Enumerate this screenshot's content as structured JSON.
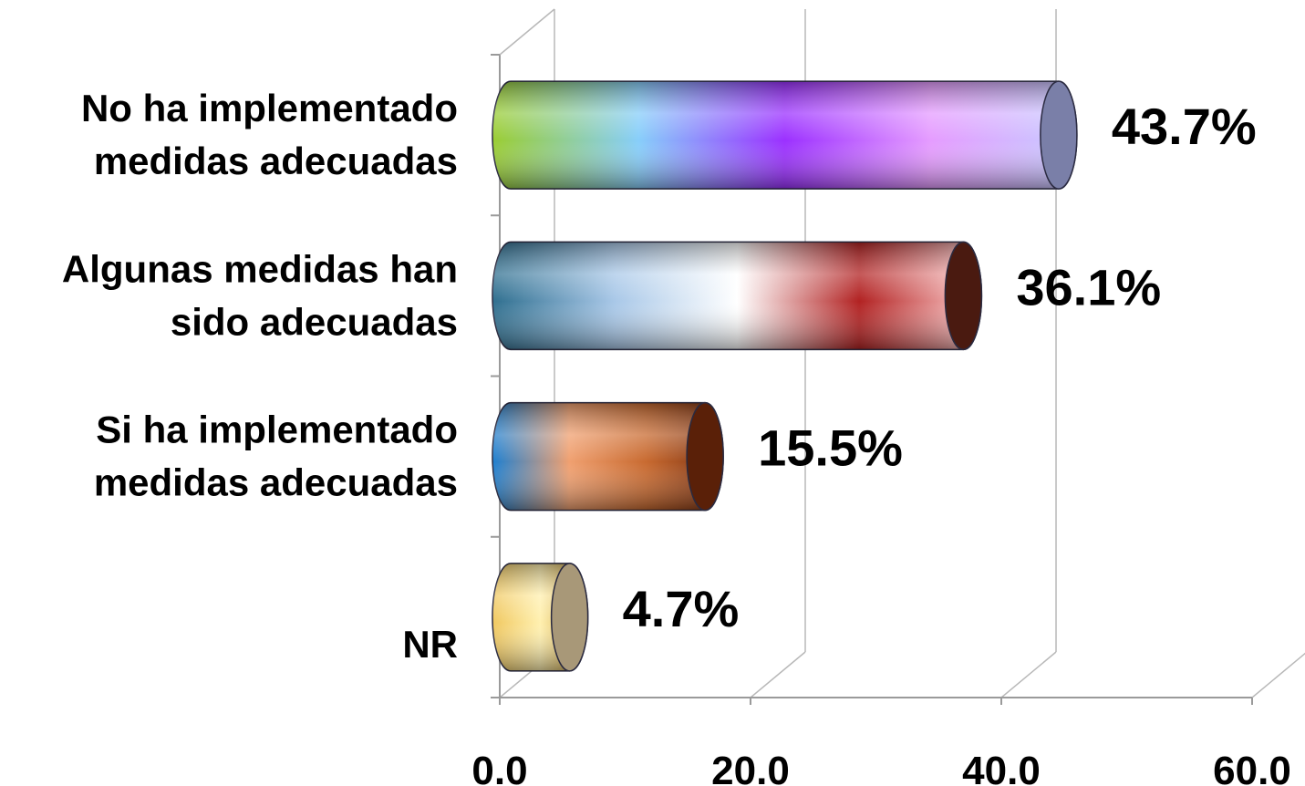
{
  "chart_data": {
    "type": "bar",
    "orientation": "horizontal",
    "style": "3d-cylinder",
    "categories": [
      [
        "No ha implementado",
        "medidas adecuadas"
      ],
      [
        "Algunas medidas han",
        "sido adecuadas"
      ],
      [
        "Si ha implementado",
        "medidas adecuadas"
      ],
      [
        "NR"
      ]
    ],
    "values": [
      43.7,
      36.1,
      15.5,
      4.7
    ],
    "data_labels": [
      "43.7%",
      "36.1%",
      "15.5%",
      "4.7%"
    ],
    "xticks": [
      "0.0",
      "20.0",
      "40.0",
      "60.0"
    ],
    "xlim": [
      0,
      60
    ],
    "grid": true,
    "legend": "none",
    "bar_colors": [
      [
        "#9acd32",
        "#87cefa",
        "#9b30ff",
        "#e59cff",
        "#c6ccff",
        "#7a7fa8"
      ],
      [
        "#2f6f8f",
        "#a9c8e8",
        "#ffffff",
        "#b22222",
        "#ffd0d0",
        "#4a1a10"
      ],
      [
        "#1e7fd0",
        "#f0a070",
        "#c86a30",
        "#7a3010",
        "#5a2008"
      ],
      [
        "#f0c860",
        "#fff0b0",
        "#c89830",
        "#a89878"
      ]
    ]
  }
}
